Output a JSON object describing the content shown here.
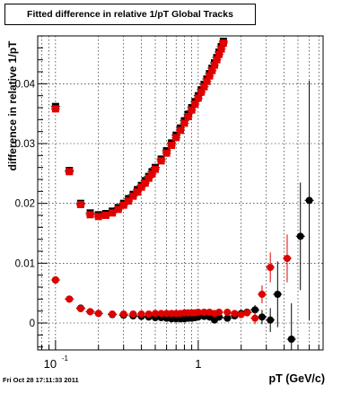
{
  "chart_data": {
    "type": "scatter",
    "title": "Fitted difference in relative 1/pT  Global Tracks",
    "xlabel": "pT (GeV/c)",
    "ylabel": "difference in relative 1/pT",
    "xscale": "log",
    "xlim": [
      0.075,
      7.5
    ],
    "ylim": [
      -0.0045,
      0.048
    ],
    "grid": true,
    "xticks": [
      {
        "value": 0.1,
        "base": "10",
        "exp": "-1"
      },
      {
        "value": 1,
        "label": "1"
      }
    ],
    "yticks": [
      {
        "value": 0,
        "label": "0"
      },
      {
        "value": 0.01,
        "label": "0.01"
      },
      {
        "value": 0.02,
        "label": "0.02"
      },
      {
        "value": 0.03,
        "label": "0.03"
      },
      {
        "value": 0.04,
        "label": "0.04"
      }
    ],
    "series": [
      {
        "color": "#000000",
        "marker": "square",
        "points": [
          [
            0.1,
            0.0362
          ],
          [
            0.125,
            0.0255
          ],
          [
            0.15,
            0.02
          ],
          [
            0.175,
            0.0184
          ],
          [
            0.2,
            0.0181
          ],
          [
            0.225,
            0.0183
          ],
          [
            0.25,
            0.0187
          ],
          [
            0.275,
            0.0193
          ],
          [
            0.3,
            0.02
          ],
          [
            0.325,
            0.0208
          ],
          [
            0.35,
            0.0215
          ],
          [
            0.375,
            0.0223
          ],
          [
            0.4,
            0.023
          ],
          [
            0.425,
            0.0238
          ],
          [
            0.45,
            0.0245
          ],
          [
            0.475,
            0.0253
          ],
          [
            0.5,
            0.026
          ],
          [
            0.55,
            0.0274
          ],
          [
            0.6,
            0.0288
          ],
          [
            0.65,
            0.0301
          ],
          [
            0.7,
            0.0314
          ],
          [
            0.75,
            0.0326
          ],
          [
            0.8,
            0.0338
          ],
          [
            0.85,
            0.0349
          ],
          [
            0.9,
            0.036
          ],
          [
            0.95,
            0.037
          ],
          [
            1.0,
            0.038
          ],
          [
            1.05,
            0.039
          ],
          [
            1.1,
            0.0399
          ],
          [
            1.15,
            0.0408
          ],
          [
            1.2,
            0.0417
          ],
          [
            1.25,
            0.0426
          ],
          [
            1.3,
            0.0435
          ],
          [
            1.35,
            0.0444
          ],
          [
            1.4,
            0.0453
          ],
          [
            1.45,
            0.0462
          ],
          [
            1.5,
            0.0471
          ]
        ]
      },
      {
        "color": "#e00000",
        "marker": "square",
        "points": [
          [
            0.1,
            0.0358
          ],
          [
            0.125,
            0.0253
          ],
          [
            0.15,
            0.0198
          ],
          [
            0.175,
            0.0181
          ],
          [
            0.2,
            0.0178
          ],
          [
            0.225,
            0.018
          ],
          [
            0.25,
            0.0184
          ],
          [
            0.275,
            0.019
          ],
          [
            0.3,
            0.0197
          ],
          [
            0.325,
            0.0204
          ],
          [
            0.35,
            0.0212
          ],
          [
            0.375,
            0.0219
          ],
          [
            0.4,
            0.0227
          ],
          [
            0.425,
            0.0234
          ],
          [
            0.45,
            0.0242
          ],
          [
            0.475,
            0.0249
          ],
          [
            0.5,
            0.0257
          ],
          [
            0.55,
            0.0271
          ],
          [
            0.6,
            0.0284
          ],
          [
            0.65,
            0.0297
          ],
          [
            0.7,
            0.031
          ],
          [
            0.75,
            0.0322
          ],
          [
            0.8,
            0.0334
          ],
          [
            0.85,
            0.0345
          ],
          [
            0.9,
            0.0356
          ],
          [
            0.95,
            0.0366
          ],
          [
            1.0,
            0.0376
          ],
          [
            1.05,
            0.0386
          ],
          [
            1.1,
            0.0395
          ],
          [
            1.15,
            0.0404
          ],
          [
            1.2,
            0.0413
          ],
          [
            1.25,
            0.0422
          ],
          [
            1.3,
            0.0431
          ],
          [
            1.35,
            0.044
          ],
          [
            1.4,
            0.0449
          ],
          [
            1.45,
            0.0458
          ],
          [
            1.5,
            0.0468
          ]
        ]
      },
      {
        "color": "#000000",
        "marker": "circle",
        "points": [
          [
            0.1,
            0.0072,
            0
          ],
          [
            0.125,
            0.004,
            0
          ],
          [
            0.15,
            0.0025,
            0
          ],
          [
            0.175,
            0.0019,
            0
          ],
          [
            0.2,
            0.0016,
            0
          ],
          [
            0.25,
            0.0014,
            0
          ],
          [
            0.3,
            0.0013,
            0
          ],
          [
            0.35,
            0.0012,
            0
          ],
          [
            0.4,
            0.0011,
            0
          ],
          [
            0.45,
            0.001,
            0
          ],
          [
            0.5,
            0.0009,
            0
          ],
          [
            0.55,
            0.0009,
            0
          ],
          [
            0.6,
            0.0008,
            0
          ],
          [
            0.65,
            0.0007,
            0
          ],
          [
            0.7,
            0.0007,
            0
          ],
          [
            0.75,
            0.0007,
            0
          ],
          [
            0.8,
            0.0007,
            0
          ],
          [
            0.85,
            0.0008,
            0
          ],
          [
            0.9,
            0.0008,
            0
          ],
          [
            0.95,
            0.0009,
            0
          ],
          [
            1.0,
            0.001,
            0
          ],
          [
            1.1,
            0.0011,
            0
          ],
          [
            1.2,
            0.001,
            0.0002
          ],
          [
            1.3,
            0.0005,
            0.0005
          ],
          [
            1.4,
            0.001,
            0.0004
          ],
          [
            1.6,
            0.0008,
            0.0004
          ],
          [
            1.8,
            0.0012,
            0.0004
          ],
          [
            2.0,
            0.0016,
            0.0005
          ],
          [
            2.2,
            0.0018,
            0.0006
          ],
          [
            2.5,
            0.0022,
            0.0008
          ],
          [
            2.8,
            0.001,
            0.0012
          ],
          [
            3.2,
            0.0005,
            0.002
          ],
          [
            3.6,
            0.0048,
            0.0055
          ],
          [
            4.5,
            -0.0027,
            0.006
          ],
          [
            5.2,
            0.0145,
            0.009
          ],
          [
            6.0,
            0.0205,
            0.02
          ]
        ]
      },
      {
        "color": "#e00000",
        "marker": "circle",
        "points": [
          [
            0.1,
            0.0072,
            0
          ],
          [
            0.125,
            0.004,
            0
          ],
          [
            0.15,
            0.0024,
            0
          ],
          [
            0.175,
            0.0019,
            0
          ],
          [
            0.2,
            0.0016,
            0
          ],
          [
            0.25,
            0.0015,
            0
          ],
          [
            0.3,
            0.0015,
            0
          ],
          [
            0.35,
            0.0015,
            0
          ],
          [
            0.4,
            0.0015,
            0
          ],
          [
            0.45,
            0.0015,
            0
          ],
          [
            0.5,
            0.0016,
            0
          ],
          [
            0.55,
            0.0016,
            0
          ],
          [
            0.6,
            0.0016,
            0
          ],
          [
            0.65,
            0.0016,
            0
          ],
          [
            0.7,
            0.0016,
            0
          ],
          [
            0.75,
            0.0016,
            0
          ],
          [
            0.8,
            0.0017,
            0
          ],
          [
            0.85,
            0.0017,
            0
          ],
          [
            0.9,
            0.0017,
            0
          ],
          [
            0.95,
            0.0017,
            0
          ],
          [
            1.0,
            0.0018,
            0
          ],
          [
            1.1,
            0.0018,
            0
          ],
          [
            1.2,
            0.0018,
            0.0002
          ],
          [
            1.3,
            0.0016,
            0.0003
          ],
          [
            1.4,
            0.0018,
            0.0003
          ],
          [
            1.6,
            0.0018,
            0.0004
          ],
          [
            1.8,
            0.0016,
            0.0004
          ],
          [
            2.0,
            0.0014,
            0.0005
          ],
          [
            2.2,
            0.0017,
            0.0006
          ],
          [
            2.5,
            0.0008,
            0.001
          ],
          [
            2.8,
            0.0048,
            0.0015
          ],
          [
            3.2,
            0.0093,
            0.0025
          ],
          [
            4.2,
            0.0108,
            0.004
          ]
        ]
      }
    ]
  },
  "footer": {
    "timestamp": "Fri Oct 28 17:11:33 2011"
  }
}
